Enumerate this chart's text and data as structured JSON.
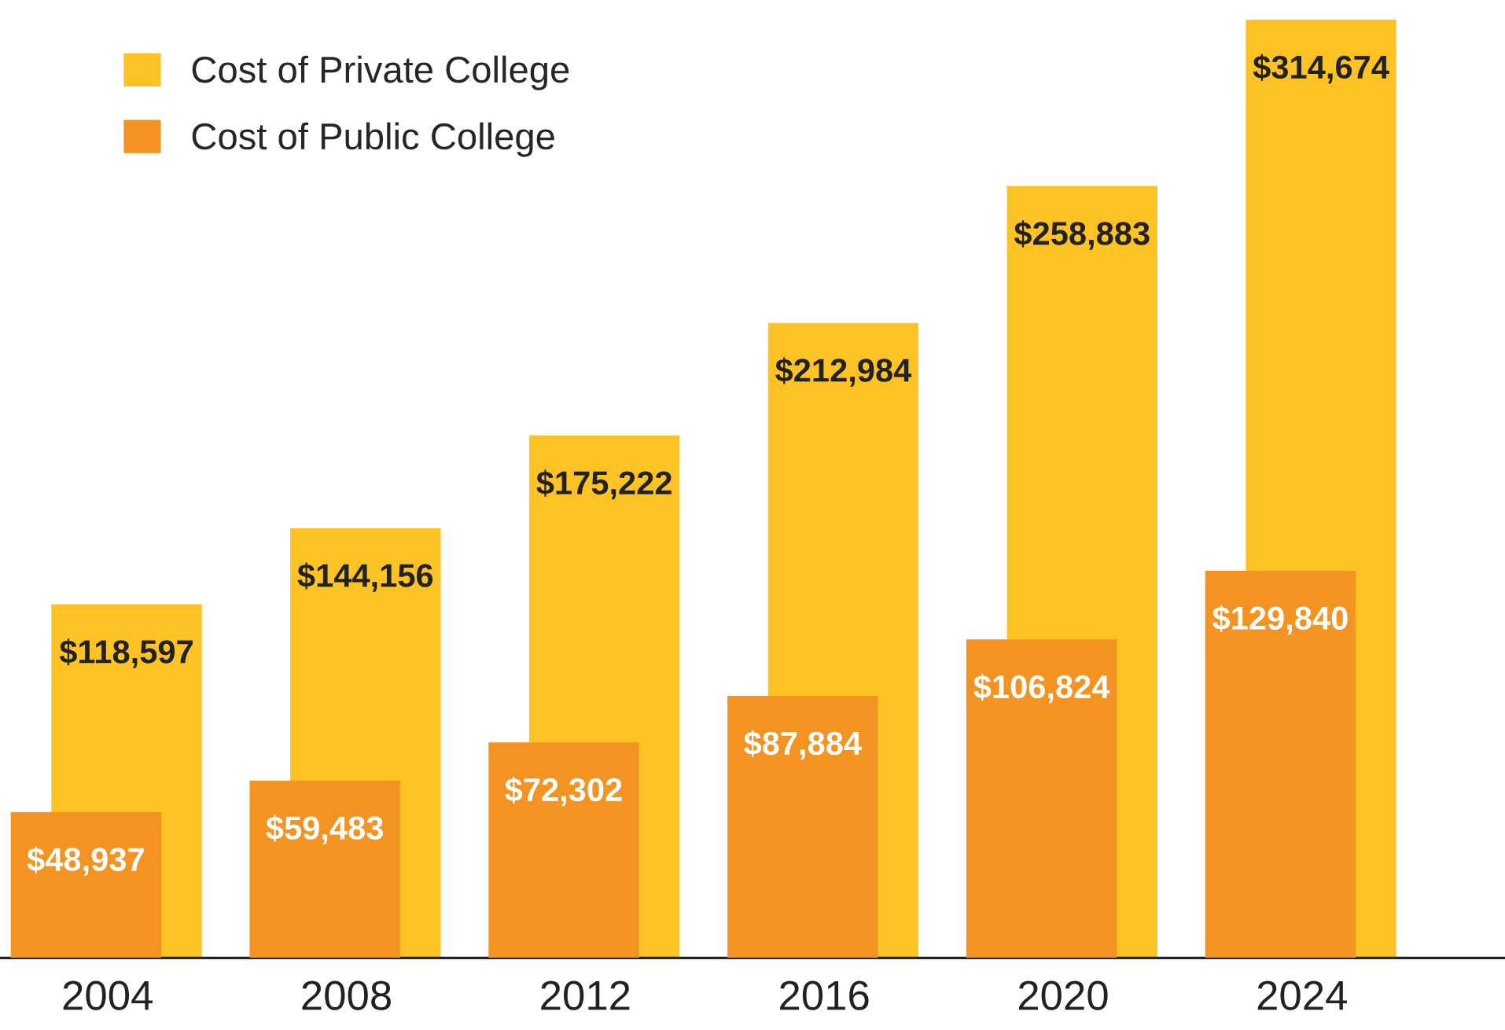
{
  "chart_data": {
    "type": "bar",
    "categories": [
      "2004",
      "2008",
      "2012",
      "2016",
      "2020",
      "2024"
    ],
    "series": [
      {
        "name": "Cost of Private College",
        "color": "#fdc223",
        "values": [
          118597,
          144156,
          175222,
          212984,
          258883,
          314674
        ],
        "value_labels": [
          "$118,597",
          "$144,156",
          "$175,222",
          "$212,984",
          "$258,883",
          "$314,674"
        ]
      },
      {
        "name": "Cost of Public College",
        "color": "#f39322",
        "values": [
          48937,
          59483,
          72302,
          87884,
          106824,
          129840
        ],
        "value_labels": [
          "$48,937",
          "$59,483",
          "$72,302",
          "$87,884",
          "$106,824",
          "$129,840"
        ]
      }
    ],
    "legend": "top left",
    "grid": false
  }
}
